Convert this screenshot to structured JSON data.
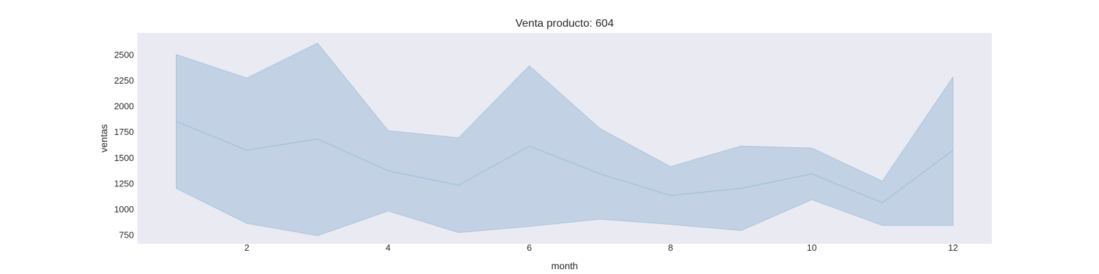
{
  "chart_data": {
    "type": "area",
    "title": "Venta producto: 604",
    "xlabel": "month",
    "ylabel": "ventas",
    "x": [
      1,
      2,
      3,
      4,
      5,
      6,
      7,
      8,
      9,
      10,
      11,
      12
    ],
    "series": [
      {
        "values": [
          1850,
          1570,
          1680,
          1370,
          1230,
          1610,
          1340,
          1130,
          1200,
          1340,
          1060,
          1570
        ],
        "upper": [
          2500,
          2270,
          2610,
          1760,
          1690,
          2390,
          1780,
          1410,
          1610,
          1590,
          1270,
          2280
        ],
        "lower": [
          1200,
          860,
          740,
          980,
          770,
          830,
          900,
          850,
          790,
          1090,
          840,
          840
        ]
      }
    ],
    "xlim": [
      0.45,
      12.55
    ],
    "ylim": [
      660,
      2710
    ],
    "xticks": [
      2,
      4,
      6,
      8,
      10,
      12
    ],
    "yticks": [
      750,
      1000,
      1250,
      1500,
      1750,
      2000,
      2250,
      2500
    ],
    "grid": false,
    "colors": {
      "plot_background": "#eaeaf2",
      "band": "#c2d2e4",
      "line": "#a7c3dd"
    }
  }
}
